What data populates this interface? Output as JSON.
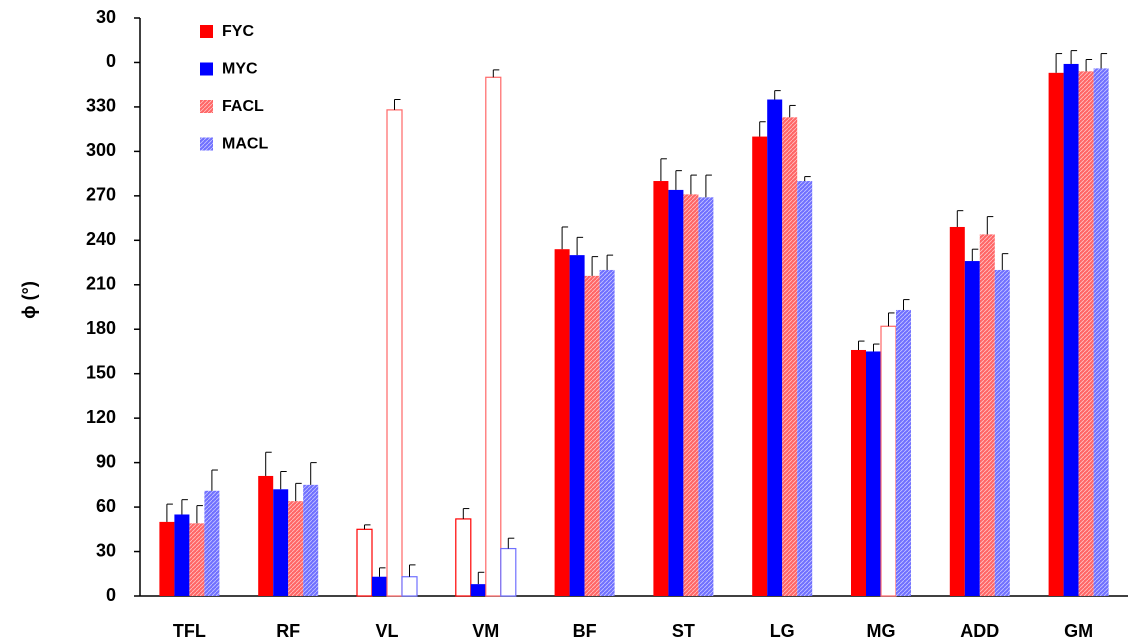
{
  "chart_data": {
    "type": "bar",
    "y_label": "ϕ (°)",
    "categories": [
      "TFL",
      "RF",
      "VL",
      "VM",
      "BF",
      "ST",
      "LG",
      "MG",
      "ADD",
      "GM"
    ],
    "series": [
      {
        "name": "FYC",
        "color": "#ff0000",
        "hatched": false,
        "values": [
          50,
          81,
          45,
          52,
          234,
          280,
          310,
          166,
          249,
          353
        ],
        "errors": [
          12,
          16,
          3,
          7,
          15,
          15,
          10,
          6,
          11,
          13
        ],
        "hollow": [
          false,
          false,
          true,
          true,
          false,
          false,
          false,
          false,
          false,
          false
        ]
      },
      {
        "name": "MYC",
        "color": "#0000ff",
        "hatched": false,
        "values": [
          55,
          72,
          13,
          8,
          230,
          274,
          335,
          165,
          226,
          359
        ],
        "errors": [
          10,
          12,
          6,
          8,
          12,
          13,
          6,
          5,
          8,
          9
        ],
        "hollow": [
          false,
          false,
          false,
          false,
          false,
          false,
          false,
          false,
          false,
          false
        ]
      },
      {
        "name": "FACL",
        "color": "#ff6666",
        "hatched": true,
        "values": [
          49,
          64,
          328,
          350,
          216,
          271,
          323,
          182,
          244,
          354
        ],
        "errors": [
          12,
          12,
          7,
          5,
          13,
          13,
          8,
          9,
          12,
          8
        ],
        "hollow": [
          false,
          false,
          true,
          true,
          false,
          false,
          false,
          true,
          false,
          false
        ]
      },
      {
        "name": "MACL",
        "color": "#7070ff",
        "hatched": true,
        "values": [
          71,
          75,
          13,
          32,
          220,
          269,
          280,
          193,
          220,
          356
        ],
        "errors": [
          14,
          15,
          8,
          7,
          10,
          15,
          3,
          7,
          11,
          10
        ],
        "hollow": [
          false,
          false,
          true,
          true,
          false,
          false,
          false,
          false,
          false,
          false
        ]
      }
    ],
    "ylim": [
      0,
      390
    ],
    "yticks": [
      0,
      30,
      60,
      90,
      120,
      150,
      180,
      210,
      240,
      270,
      300,
      330,
      {
        "value": 360,
        "label": "0"
      },
      {
        "value": 390,
        "label": "30"
      }
    ],
    "grid": false
  }
}
